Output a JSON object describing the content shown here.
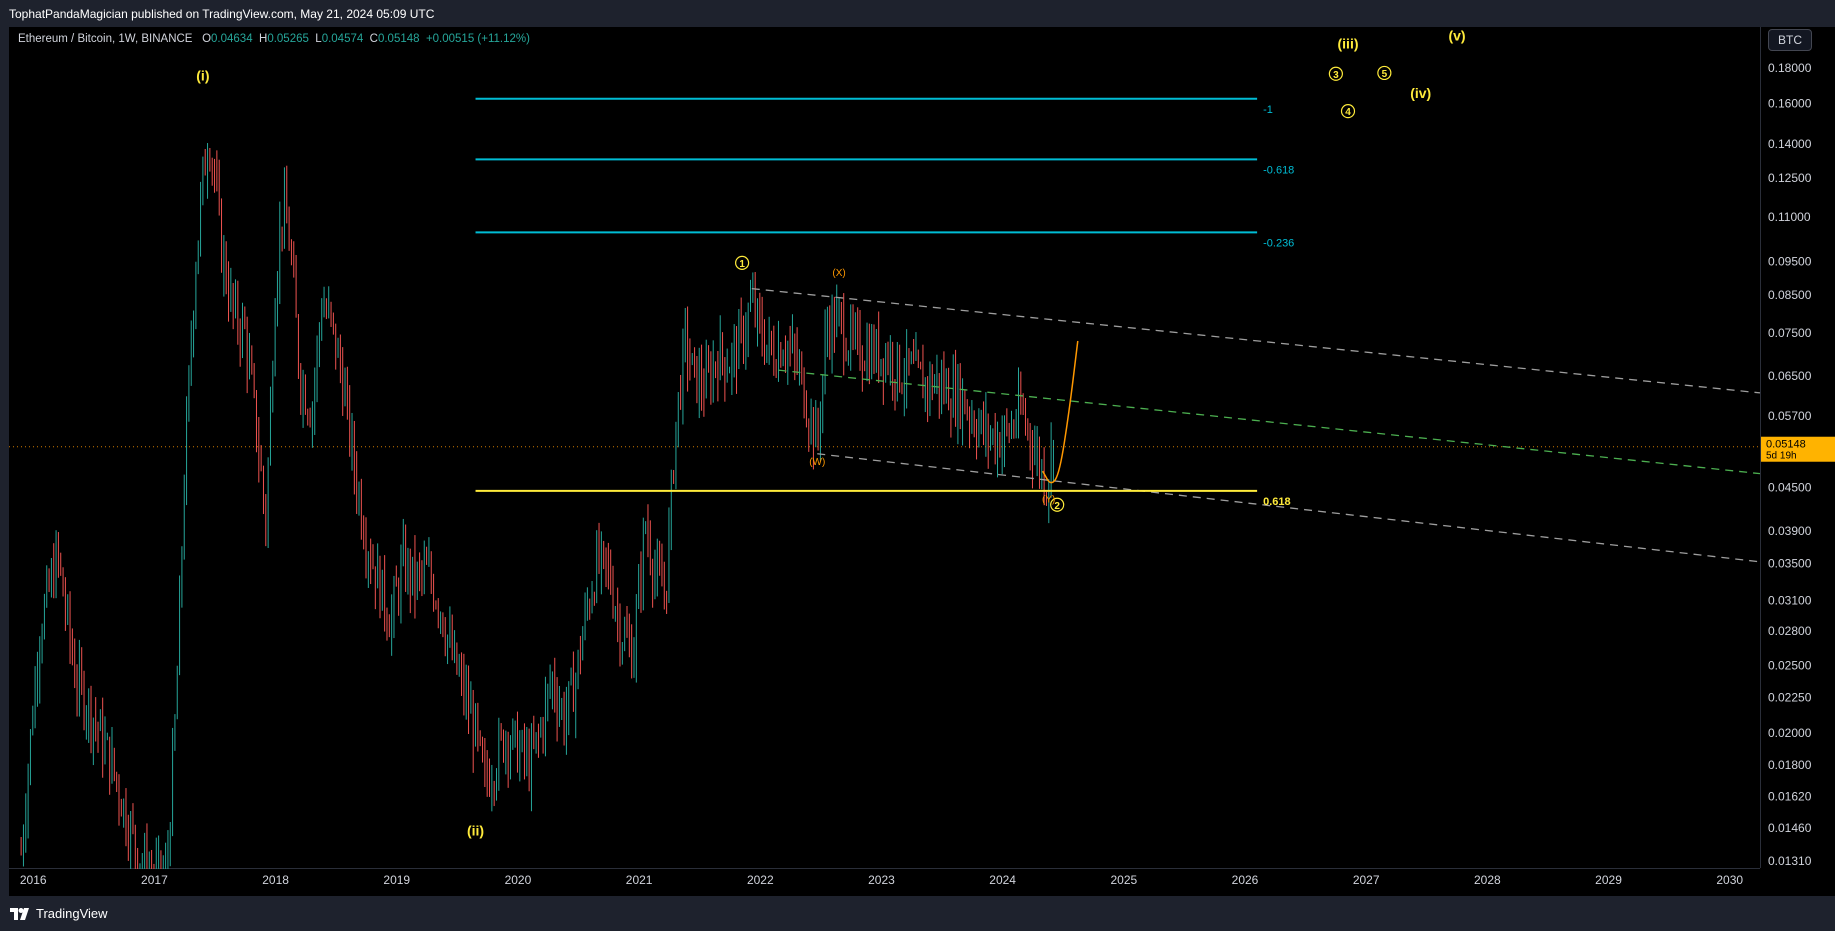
{
  "publish_line": "TophatPandaMagician published on TradingView.com, May 21, 2024 05:09 UTC",
  "branding": "TradingView",
  "currency_button": "BTC",
  "legend": {
    "symbol": "Ethereum / Bitcoin, 1W, BINANCE",
    "o_label": "O",
    "o_value": "0.04634",
    "h_label": "H",
    "h_value": "0.05265",
    "l_label": "L",
    "l_value": "0.04574",
    "c_label": "C",
    "c_value": "0.05148",
    "change": "+0.00515 (+11.12%)"
  },
  "last_price": {
    "value": "0.05148",
    "countdown": "5d 19h"
  },
  "colors": {
    "up": "#26a69a",
    "down": "#ef5350",
    "fib_blue": "#00bcd4",
    "fib_yellow": "#ffeb3b",
    "wave_label": "#ffeb3b",
    "corrective_label": "#ff9800",
    "projection": "#ff9800",
    "channel_gray": "#9e9e9e",
    "channel_green": "#4caf50"
  },
  "chart_data": {
    "type": "candlestick",
    "symbol": "Ethereum / Bitcoin",
    "interval": "1W",
    "exchange": "BINANCE",
    "scale": "log",
    "y_ticks": [
      "0.18000",
      "0.16000",
      "0.14000",
      "0.12500",
      "0.11000",
      "0.09500",
      "0.08500",
      "0.07500",
      "0.06500",
      "0.05700",
      "0.04500",
      "0.03900",
      "0.03500",
      "0.03100",
      "0.02800",
      "0.02500",
      "0.02250",
      "0.02000",
      "0.01800",
      "0.01620",
      "0.01460",
      "0.01310"
    ],
    "x_ticks": [
      "2016",
      "2017",
      "2018",
      "2019",
      "2020",
      "2021",
      "2022",
      "2023",
      "2024",
      "2025",
      "2026",
      "2027",
      "2028",
      "2029",
      "2030"
    ],
    "x_range": [
      2015.8,
      2030.25
    ],
    "y_range": [
      0.0128,
      0.206
    ],
    "price_path": [
      [
        2015.9,
        0.0135
      ],
      [
        2016.05,
        0.028
      ],
      [
        2016.2,
        0.036
      ],
      [
        2016.35,
        0.024
      ],
      [
        2016.5,
        0.021
      ],
      [
        2016.65,
        0.018
      ],
      [
        2016.8,
        0.0145
      ],
      [
        2016.95,
        0.0125
      ],
      [
        2017.1,
        0.0125
      ],
      [
        2017.18,
        0.022
      ],
      [
        2017.25,
        0.048
      ],
      [
        2017.33,
        0.09
      ],
      [
        2017.4,
        0.125
      ],
      [
        2017.45,
        0.145
      ],
      [
        2017.5,
        0.125
      ],
      [
        2017.55,
        0.1
      ],
      [
        2017.65,
        0.08
      ],
      [
        2017.75,
        0.075
      ],
      [
        2017.85,
        0.053
      ],
      [
        2017.92,
        0.04
      ],
      [
        2018.0,
        0.09
      ],
      [
        2018.06,
        0.115
      ],
      [
        2018.12,
        0.1
      ],
      [
        2018.2,
        0.065
      ],
      [
        2018.3,
        0.058
      ],
      [
        2018.38,
        0.083
      ],
      [
        2018.45,
        0.078
      ],
      [
        2018.55,
        0.065
      ],
      [
        2018.65,
        0.048
      ],
      [
        2018.75,
        0.038
      ],
      [
        2018.85,
        0.033
      ],
      [
        2018.95,
        0.029
      ],
      [
        2019.05,
        0.035
      ],
      [
        2019.15,
        0.033
      ],
      [
        2019.25,
        0.034
      ],
      [
        2019.35,
        0.031
      ],
      [
        2019.45,
        0.026
      ],
      [
        2019.55,
        0.023
      ],
      [
        2019.65,
        0.02
      ],
      [
        2019.72,
        0.017
      ],
      [
        2019.8,
        0.018
      ],
      [
        2019.9,
        0.02
      ],
      [
        2020.0,
        0.019
      ],
      [
        2020.1,
        0.018
      ],
      [
        2020.18,
        0.02
      ],
      [
        2020.28,
        0.024
      ],
      [
        2020.38,
        0.021
      ],
      [
        2020.48,
        0.024
      ],
      [
        2020.55,
        0.029
      ],
      [
        2020.65,
        0.035
      ],
      [
        2020.75,
        0.034
      ],
      [
        2020.85,
        0.028
      ],
      [
        2020.95,
        0.026
      ],
      [
        2021.05,
        0.04
      ],
      [
        2021.15,
        0.033
      ],
      [
        2021.22,
        0.032
      ],
      [
        2021.3,
        0.055
      ],
      [
        2021.38,
        0.073
      ],
      [
        2021.45,
        0.065
      ],
      [
        2021.55,
        0.063
      ],
      [
        2021.65,
        0.07
      ],
      [
        2021.75,
        0.068
      ],
      [
        2021.85,
        0.074
      ],
      [
        2021.93,
        0.083
      ],
      [
        2022.0,
        0.075
      ],
      [
        2022.1,
        0.07
      ],
      [
        2022.2,
        0.073
      ],
      [
        2022.3,
        0.068
      ],
      [
        2022.4,
        0.058
      ],
      [
        2022.47,
        0.052
      ],
      [
        2022.55,
        0.077
      ],
      [
        2022.65,
        0.078
      ],
      [
        2022.75,
        0.072
      ],
      [
        2022.85,
        0.071
      ],
      [
        2022.95,
        0.07
      ],
      [
        2023.05,
        0.07
      ],
      [
        2023.15,
        0.066
      ],
      [
        2023.25,
        0.066
      ],
      [
        2023.35,
        0.063
      ],
      [
        2023.45,
        0.064
      ],
      [
        2023.55,
        0.062
      ],
      [
        2023.65,
        0.061
      ],
      [
        2023.75,
        0.057
      ],
      [
        2023.85,
        0.054
      ],
      [
        2023.95,
        0.053
      ],
      [
        2024.05,
        0.054
      ],
      [
        2024.15,
        0.058
      ],
      [
        2024.22,
        0.054
      ],
      [
        2024.3,
        0.049
      ],
      [
        2024.36,
        0.046
      ],
      [
        2024.42,
        0.05148
      ]
    ],
    "fib_levels": [
      {
        "label": "-1",
        "price": 0.1625,
        "color": "#00bcd4"
      },
      {
        "label": "-0.618",
        "price": 0.133,
        "color": "#00bcd4"
      },
      {
        "label": "-0.236",
        "price": 0.1045,
        "color": "#00bcd4"
      },
      {
        "label": "0.618",
        "price": 0.0445,
        "color": "#ffeb3b"
      }
    ],
    "fib_x_range": [
      2019.65,
      2026.1
    ],
    "channel_lines": [
      {
        "from": [
          2021.93,
          0.0868
        ],
        "to": [
          2030.25,
          0.0615
        ],
        "color": "#9e9e9e",
        "dash": "8,6"
      },
      {
        "from": [
          2022.15,
          0.0663
        ],
        "to": [
          2030.25,
          0.0471
        ],
        "color": "#4caf50",
        "dash": "8,6"
      },
      {
        "from": [
          2022.47,
          0.0503
        ],
        "to": [
          2030.25,
          0.0352
        ],
        "color": "#9e9e9e",
        "dash": "8,6"
      }
    ],
    "projection": [
      [
        2024.33,
        0.0475
      ],
      [
        2024.4,
        0.0452
      ],
      [
        2024.47,
        0.0472
      ],
      [
        2024.55,
        0.058
      ],
      [
        2024.62,
        0.073
      ]
    ],
    "wave_labels": [
      {
        "text": "(i)",
        "x": 2017.4,
        "price": 0.1725,
        "style": "paren"
      },
      {
        "text": "(ii)",
        "x": 2019.65,
        "price": 0.01425,
        "style": "paren"
      },
      {
        "text": "(iii)",
        "x": 2026.85,
        "price": 0.192,
        "style": "paren"
      },
      {
        "text": "(iv)",
        "x": 2027.45,
        "price": 0.163,
        "style": "paren"
      },
      {
        "text": "(v)",
        "x": 2027.75,
        "price": 0.197,
        "style": "paren"
      },
      {
        "text": "1",
        "x": 2021.85,
        "price": 0.0945,
        "style": "circle"
      },
      {
        "text": "2",
        "x": 2024.45,
        "price": 0.0425,
        "style": "circle"
      },
      {
        "text": "3",
        "x": 2026.75,
        "price": 0.1765,
        "style": "circle"
      },
      {
        "text": "4",
        "x": 2026.85,
        "price": 0.156,
        "style": "circle"
      },
      {
        "text": "5",
        "x": 2027.15,
        "price": 0.177,
        "style": "circle"
      },
      {
        "text": "(X)",
        "x": 2022.65,
        "price": 0.0905,
        "style": "small"
      },
      {
        "text": "(W)",
        "x": 2022.47,
        "price": 0.0485,
        "style": "small"
      },
      {
        "text": "(Y)",
        "x": 2024.38,
        "price": 0.0428,
        "style": "small"
      }
    ]
  }
}
